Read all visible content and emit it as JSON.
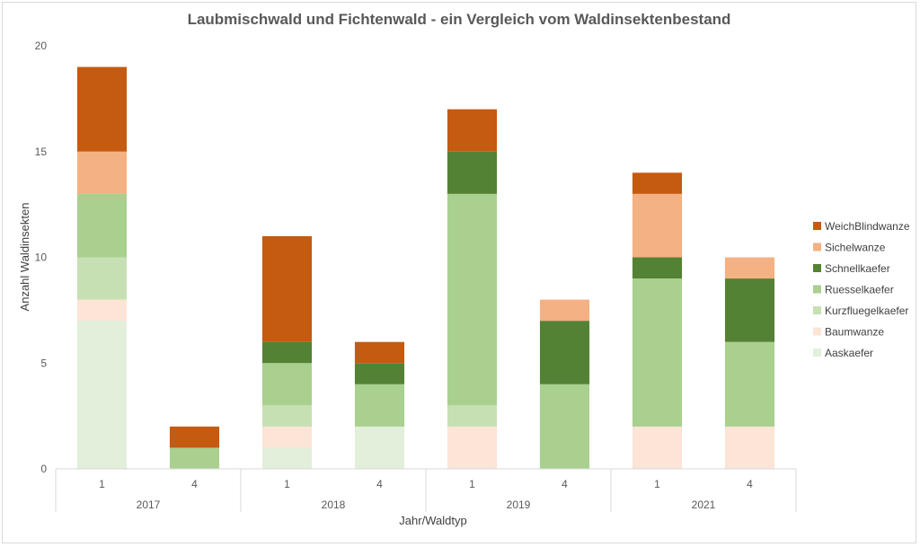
{
  "chart_data": {
    "type": "bar",
    "stacked": true,
    "title": "Laubmischwald und Fichtenwald - ein Vergleich vom Waldinsektenbestand",
    "xlabel": "Jahr/Waldtyp",
    "ylabel": "Anzahl Waldinsekten",
    "ylim": [
      0,
      20
    ],
    "yticks": [
      "0",
      "5",
      "10",
      "15",
      "20"
    ],
    "grid": false,
    "legend_position": "right",
    "groups": [
      {
        "label": "2017",
        "categories": [
          "1",
          "4"
        ]
      },
      {
        "label": "2018",
        "categories": [
          "1",
          "4"
        ]
      },
      {
        "label": "2019",
        "categories": [
          "1",
          "4"
        ]
      },
      {
        "label": "2021",
        "categories": [
          "1",
          "4"
        ]
      }
    ],
    "series": [
      {
        "name": "Aaskaefer",
        "color": "#e2efda",
        "values": [
          7,
          0,
          1,
          2,
          0,
          0,
          0,
          0
        ]
      },
      {
        "name": "Baumwanze",
        "color": "#fce4d6",
        "values": [
          1,
          0,
          1,
          0,
          2,
          0,
          2,
          2
        ]
      },
      {
        "name": "Kurzfluegelkaefer",
        "color": "#c6e0b4",
        "values": [
          2,
          0,
          1,
          0,
          1,
          0,
          0,
          0
        ]
      },
      {
        "name": "Ruesselkaefer",
        "color": "#a9d08e",
        "values": [
          3,
          1,
          2,
          2,
          10,
          4,
          7,
          4
        ]
      },
      {
        "name": "Schnellkaefer",
        "color": "#548235",
        "values": [
          0,
          0,
          1,
          1,
          2,
          3,
          1,
          3
        ]
      },
      {
        "name": "Sichelwanze",
        "color": "#f4b183",
        "values": [
          2,
          0,
          0,
          0,
          0,
          1,
          3,
          1
        ]
      },
      {
        "name": "WeichBlindwanze",
        "color": "#c55a11",
        "values": [
          4,
          1,
          5,
          1,
          2,
          0,
          1,
          0
        ]
      }
    ]
  }
}
